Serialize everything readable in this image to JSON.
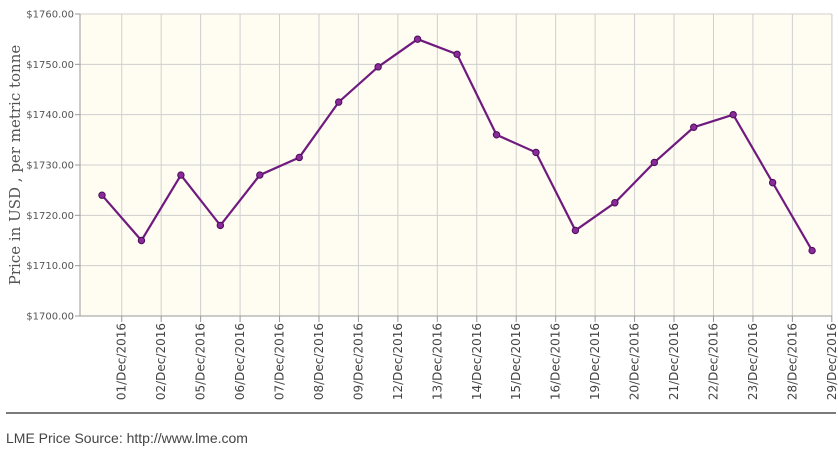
{
  "chart_data": {
    "type": "line",
    "title": "",
    "ylabel": "Price in USD , per metric tonne",
    "xlabel": "",
    "x": [
      "01/Dec/2016",
      "02/Dec/2016",
      "05/Dec/2016",
      "06/Dec/2016",
      "07/Dec/2016",
      "08/Dec/2016",
      "09/Dec/2016",
      "12/Dec/2016",
      "13/Dec/2016",
      "14/Dec/2016",
      "15/Dec/2016",
      "16/Dec/2016",
      "19/Dec/2016",
      "20/Dec/2016",
      "21/Dec/2016",
      "22/Dec/2016",
      "23/Dec/2016",
      "28/Dec/2016",
      "29/Dec/2016"
    ],
    "series": [
      {
        "values": [
          1724,
          1715,
          1728,
          1718,
          1728,
          1731.5,
          1742.5,
          1749.5,
          1755,
          1752,
          1736,
          1732.5,
          1717,
          1722.5,
          1730.5,
          1737.5,
          1740,
          1726.5,
          1713
        ],
        "color": "#6f1a7f"
      }
    ],
    "ylim": [
      1700,
      1760
    ],
    "yticks": [
      "$1700.00",
      "$1710.00",
      "$1720.00",
      "$1730.00",
      "$1740.00",
      "$1750.00",
      "$1760.00"
    ],
    "grid": true,
    "legend": "none"
  },
  "footer": {
    "source": "LME Price Source: http://www.lme.com"
  },
  "colors": {
    "plot_background": "#fffcf1",
    "line": "#6f1a7f",
    "grid": "#cfcfcf"
  }
}
